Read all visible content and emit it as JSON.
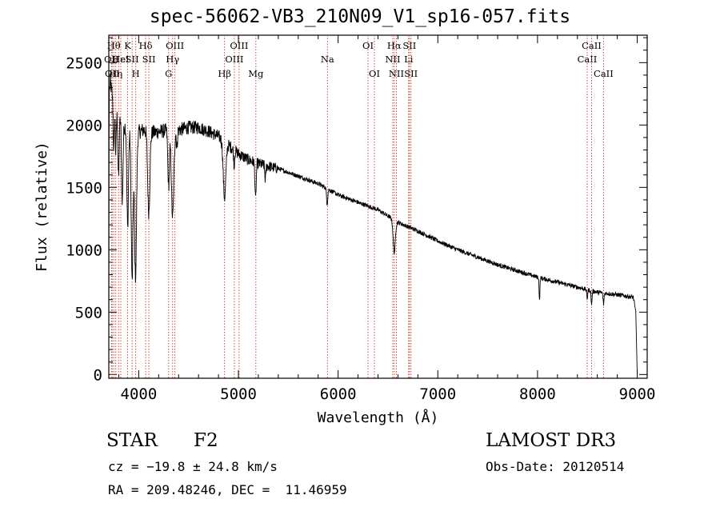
{
  "chart_data": {
    "type": "line",
    "title": "spec-56062-VB3_210N09_V1_sp16-057.fits",
    "xlabel": "Wavelength (Å)",
    "ylabel": "Flux (relative)",
    "xlim": [
      3700,
      9100
    ],
    "ylim": [
      -30,
      2720
    ],
    "xticks": [
      {
        "value": 4000,
        "label": "4000"
      },
      {
        "value": 5000,
        "label": "5000"
      },
      {
        "value": 6000,
        "label": "6000"
      },
      {
        "value": 7000,
        "label": "7000"
      },
      {
        "value": 8000,
        "label": "8000"
      },
      {
        "value": 9000,
        "label": "9000"
      }
    ],
    "yticks": [
      {
        "value": 0,
        "label": "0"
      },
      {
        "value": 500,
        "label": "500"
      },
      {
        "value": 1000,
        "label": "1000"
      },
      {
        "value": 1500,
        "label": "1500"
      },
      {
        "value": 2000,
        "label": "2000"
      },
      {
        "value": 2500,
        "label": "2500"
      }
    ],
    "x_minor_step": 200,
    "y_minor_step": 100,
    "continuum": [
      [
        3700,
        0
      ],
      [
        3703,
        2250
      ],
      [
        3715,
        2350
      ],
      [
        3740,
        2200
      ],
      [
        3780,
        2100
      ],
      [
        3850,
        2000
      ],
      [
        3950,
        1930
      ],
      [
        4050,
        1960
      ],
      [
        4150,
        1940
      ],
      [
        4300,
        1960
      ],
      [
        4400,
        1960
      ],
      [
        4500,
        1980
      ],
      [
        4600,
        1980
      ],
      [
        4700,
        1950
      ],
      [
        4800,
        1910
      ],
      [
        4900,
        1840
      ],
      [
        5000,
        1770
      ],
      [
        5100,
        1720
      ],
      [
        5200,
        1690
      ],
      [
        5400,
        1650
      ],
      [
        5600,
        1590
      ],
      [
        5800,
        1530
      ],
      [
        6000,
        1440
      ],
      [
        6200,
        1380
      ],
      [
        6400,
        1320
      ],
      [
        6600,
        1220
      ],
      [
        6800,
        1150
      ],
      [
        7000,
        1070
      ],
      [
        7200,
        1000
      ],
      [
        7400,
        940
      ],
      [
        7600,
        880
      ],
      [
        7800,
        830
      ],
      [
        8000,
        780
      ],
      [
        8200,
        740
      ],
      [
        8400,
        700
      ],
      [
        8600,
        660
      ],
      [
        8800,
        640
      ],
      [
        8960,
        620
      ],
      [
        8985,
        510
      ],
      [
        8993,
        250
      ],
      [
        9000,
        0
      ]
    ],
    "absorption_features": [
      {
        "center": 3750,
        "depth": 400,
        "width": 5
      },
      {
        "center": 3770,
        "depth": 350,
        "width": 5
      },
      {
        "center": 3798,
        "depth": 500,
        "width": 6
      },
      {
        "center": 3835,
        "depth": 650,
        "width": 7
      },
      {
        "center": 3889,
        "depth": 800,
        "width": 8
      },
      {
        "center": 3934,
        "depth": 1200,
        "width": 9
      },
      {
        "center": 3968,
        "depth": 1150,
        "width": 10
      },
      {
        "center": 4101,
        "depth": 650,
        "width": 11
      },
      {
        "center": 4300,
        "depth": 450,
        "width": 8
      },
      {
        "center": 4340,
        "depth": 700,
        "width": 12
      },
      {
        "center": 4383,
        "depth": 150,
        "width": 5
      },
      {
        "center": 4861,
        "depth": 450,
        "width": 13
      },
      {
        "center": 4957,
        "depth": 120,
        "width": 5
      },
      {
        "center": 5172,
        "depth": 300,
        "width": 6
      },
      {
        "center": 5270,
        "depth": 120,
        "width": 5
      },
      {
        "center": 5890,
        "depth": 120,
        "width": 6
      },
      {
        "center": 6563,
        "depth": 260,
        "width": 11
      },
      {
        "center": 8020,
        "depth": 190,
        "width": 4
      },
      {
        "center": 8498,
        "depth": 70,
        "width": 5
      },
      {
        "center": 8542,
        "depth": 110,
        "width": 5
      },
      {
        "center": 8662,
        "depth": 90,
        "width": 5
      }
    ],
    "noise_amplitude": 55,
    "noise_amplitude_red": 18,
    "line_markers": [
      {
        "x": 3726,
        "label": "OII",
        "row": 1
      },
      {
        "x": 3734,
        "label": "OII",
        "row": 2
      },
      {
        "x": 3750,
        "label": "Hθ",
        "row": 0
      },
      {
        "x": 3770,
        "label": "Hη",
        "row": 2
      },
      {
        "x": 3798,
        "label": "Hε",
        "row": 1
      },
      {
        "x": 3820,
        "label": "HeI",
        "row": 1
      },
      {
        "x": 3889,
        "label": "K",
        "row": 0
      },
      {
        "x": 3934,
        "label": "SII",
        "row": 1
      },
      {
        "x": 3970,
        "label": "H",
        "row": 2
      },
      {
        "x": 4070,
        "label": "Hδ",
        "row": 0
      },
      {
        "x": 4102,
        "label": "SII",
        "row": 1
      },
      {
        "x": 4300,
        "label": "G",
        "row": 2
      },
      {
        "x": 4340,
        "label": "Hγ",
        "row": 1
      },
      {
        "x": 4363,
        "label": "OIII",
        "row": 0
      },
      {
        "x": 4861,
        "label": "Hβ",
        "row": 2
      },
      {
        "x": 4959,
        "label": "OIII",
        "row": 1
      },
      {
        "x": 5007,
        "label": "OIII",
        "row": 0
      },
      {
        "x": 5175,
        "label": "Mg",
        "row": 2
      },
      {
        "x": 5893,
        "label": "Na",
        "row": 1
      },
      {
        "x": 6300,
        "label": "OI",
        "row": 0
      },
      {
        "x": 6364,
        "label": "OI",
        "row": 2
      },
      {
        "x": 6548,
        "label": "NII",
        "row": 1
      },
      {
        "x": 6563,
        "label": "Hα",
        "row": 0
      },
      {
        "x": 6584,
        "label": "NII",
        "row": 2
      },
      {
        "x": 6707,
        "label": "Li",
        "row": 1
      },
      {
        "x": 6716,
        "label": "SII",
        "row": 0
      },
      {
        "x": 6731,
        "label": "SII",
        "row": 2
      },
      {
        "x": 8498,
        "label": "CaII",
        "row": 1
      },
      {
        "x": 8542,
        "label": "CaII",
        "row": 0
      },
      {
        "x": 8662,
        "label": "CaII",
        "row": 2
      }
    ]
  },
  "info": {
    "object_class": "STAR",
    "subclass": "F2",
    "survey": "LAMOST DR3",
    "cz_text": "cz = −19.8 ± 24.8 km/s",
    "obs_date": "Obs-Date: 20120514",
    "radec_text": "RA = 209.48246, DEC =  11.46959"
  },
  "colors": {
    "spectrum": "#000000",
    "marker_lines": "#c0392b",
    "axes": "#000000",
    "background": "#ffffff"
  }
}
